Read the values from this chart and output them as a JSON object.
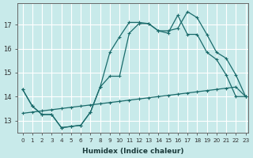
{
  "xlabel": "Humidex (Indice chaleur)",
  "bg_color": "#c8eaea",
  "grid_color": "#ffffff",
  "line_color": "#1a6b6b",
  "xlim_min": -0.5,
  "xlim_max": 23.3,
  "ylim_min": 12.5,
  "ylim_max": 17.9,
  "yticks": [
    13,
    14,
    15,
    16,
    17
  ],
  "xticks": [
    0,
    1,
    2,
    3,
    4,
    5,
    6,
    7,
    8,
    9,
    10,
    11,
    12,
    13,
    14,
    15,
    16,
    17,
    18,
    19,
    20,
    21,
    22,
    23
  ],
  "series1_x": [
    0,
    1,
    2,
    3,
    4,
    5,
    6,
    7,
    8,
    9,
    10,
    11,
    12,
    13,
    14,
    15,
    16,
    17,
    18,
    19,
    20,
    21,
    22,
    23
  ],
  "series1_y": [
    13.3,
    13.35,
    13.4,
    13.45,
    13.5,
    13.55,
    13.6,
    13.65,
    13.7,
    13.75,
    13.8,
    13.85,
    13.9,
    13.95,
    14.0,
    14.05,
    14.1,
    14.15,
    14.2,
    14.25,
    14.3,
    14.35,
    14.4,
    14.0
  ],
  "series2_x": [
    0,
    1,
    2,
    3,
    4,
    5,
    6,
    7,
    8,
    9,
    10,
    11,
    12,
    13,
    14,
    15,
    16,
    17,
    18,
    19,
    20,
    21,
    22,
    23
  ],
  "series2_y": [
    14.3,
    13.6,
    13.25,
    13.25,
    12.7,
    12.75,
    12.8,
    13.35,
    14.4,
    14.85,
    14.85,
    16.65,
    17.05,
    17.05,
    16.75,
    16.65,
    17.4,
    16.6,
    16.6,
    15.85,
    15.55,
    14.9,
    14.0,
    14.0
  ],
  "series3_x": [
    0,
    1,
    2,
    3,
    4,
    5,
    6,
    7,
    8,
    9,
    10,
    11,
    12,
    13,
    14,
    15,
    16,
    17,
    18,
    19,
    20,
    21,
    22,
    23
  ],
  "series3_y": [
    14.3,
    13.6,
    13.25,
    13.25,
    12.7,
    12.75,
    12.8,
    13.35,
    14.4,
    15.85,
    16.5,
    17.1,
    17.1,
    17.05,
    16.75,
    16.75,
    16.85,
    17.55,
    17.3,
    16.6,
    15.85,
    15.6,
    14.9,
    14.0
  ]
}
